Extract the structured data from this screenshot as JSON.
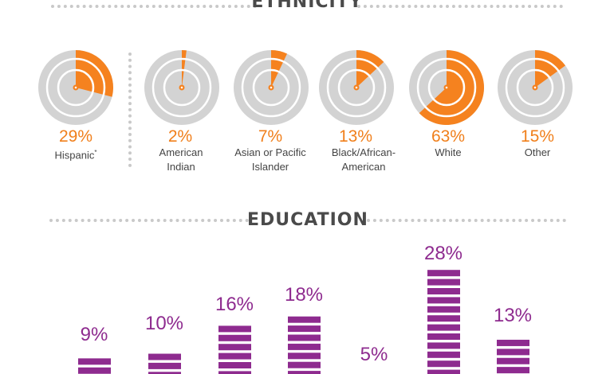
{
  "ethnicity": {
    "title": "ETHNICITY",
    "colors": {
      "accent": "#f5821f",
      "base": "#d3d3d3",
      "ring": "#ffffff"
    },
    "items": [
      {
        "pct": "29%",
        "label": "Hispanic",
        "footnote": "*"
      },
      {
        "pct": "2%",
        "label": "American Indian"
      },
      {
        "pct": "7%",
        "label": "Asian or Pacific Islander"
      },
      {
        "pct": "13%",
        "label": "Black/African-American"
      },
      {
        "pct": "63%",
        "label": "White"
      },
      {
        "pct": "15%",
        "label": "Other"
      }
    ]
  },
  "education": {
    "title": "EDUCATION",
    "colors": {
      "bar": "#8e2b8f"
    },
    "items": [
      {
        "pct": "9%"
      },
      {
        "pct": "10%"
      },
      {
        "pct": "16%"
      },
      {
        "pct": "18%"
      },
      {
        "pct": "5%"
      },
      {
        "pct": "28%"
      },
      {
        "pct": "13%"
      }
    ]
  },
  "chart_data": [
    {
      "type": "pie",
      "title": "ETHNICITY",
      "categories": [
        "Hispanic",
        "American Indian",
        "Asian or Pacific Islander",
        "Black/African-American",
        "White",
        "Other"
      ],
      "values": [
        29,
        2,
        7,
        13,
        63,
        15
      ]
    },
    {
      "type": "bar",
      "title": "EDUCATION",
      "categories": [
        "",
        "",
        "",
        "",
        "",
        "",
        ""
      ],
      "values": [
        9,
        10,
        16,
        18,
        5,
        28,
        13
      ]
    }
  ]
}
